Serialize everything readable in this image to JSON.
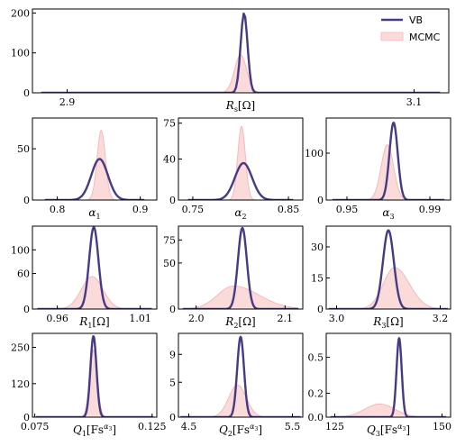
{
  "colors": {
    "vb": "#463a85",
    "mcmc_fill": "#fbdada",
    "mcmc_line": "#f6b9bb",
    "axis": "#000000"
  },
  "legend": {
    "placement": "top-right",
    "vb_label": "VB",
    "mcmc_label": "MCMC"
  },
  "chart_data": [
    {
      "id": "Rs",
      "type": "area",
      "xlabel": "R",
      "xlabel_sub": "s",
      "xlabel_unit": "[Ω]",
      "xlim": [
        2.88,
        3.12
      ],
      "ylim": [
        0,
        210
      ],
      "xticks": [
        2.9,
        3.1
      ],
      "xtick_labels": [
        "2.9",
        "3.1"
      ],
      "yticks": [
        0,
        100,
        200
      ],
      "ytick_labels": [
        "0",
        "100",
        "200"
      ],
      "line_range": [
        2.885,
        3.115
      ],
      "series": [
        {
          "name": "VB",
          "kind": "line",
          "center": 3.002,
          "sigma": 0.002,
          "peak": 200
        },
        {
          "name": "MCMC",
          "kind": "fill",
          "center": 3.0,
          "sigma": 0.0035,
          "peak": 95
        }
      ]
    },
    {
      "id": "alpha1",
      "type": "area",
      "xlabel": "α",
      "xlabel_sub": "1",
      "xlabel_unit": "",
      "xlim": [
        0.77,
        0.92
      ],
      "ylim": [
        0,
        80
      ],
      "xticks": [
        0.8,
        0.9
      ],
      "xtick_labels": [
        "0.8",
        "0.9"
      ],
      "yticks": [
        0,
        50
      ],
      "ytick_labels": [
        "0",
        "50"
      ],
      "line_range": [
        0.785,
        0.905
      ],
      "series": [
        {
          "name": "VB",
          "kind": "line",
          "center": 0.851,
          "sigma": 0.01,
          "peak": 40
        },
        {
          "name": "MCMC",
          "kind": "fill",
          "center": 0.853,
          "sigma": 0.005,
          "peak": 68
        }
      ]
    },
    {
      "id": "alpha2",
      "type": "area",
      "xlabel": "α",
      "xlabel_sub": "2",
      "xlabel_unit": "",
      "xlim": [
        0.735,
        0.865
      ],
      "ylim": [
        0,
        80
      ],
      "xticks": [
        0.75,
        0.85
      ],
      "xtick_labels": [
        "0.75",
        "0.85"
      ],
      "yticks": [
        0,
        40,
        75
      ],
      "ytick_labels": [
        "0",
        "40",
        "75"
      ],
      "line_range": [
        0.745,
        0.855
      ],
      "series": [
        {
          "name": "VB",
          "kind": "line",
          "center": 0.803,
          "sigma": 0.009,
          "peak": 36
        },
        {
          "name": "MCMC",
          "kind": "fill",
          "center": 0.801,
          "sigma": 0.004,
          "peak": 72
        }
      ]
    },
    {
      "id": "alpha3",
      "type": "area",
      "xlabel": "α",
      "xlabel_sub": "3",
      "xlabel_unit": "",
      "xlim": [
        0.94,
        1.0
      ],
      "ylim": [
        0,
        175
      ],
      "xticks": [
        0.95,
        0.99
      ],
      "xtick_labels": [
        "0.95",
        "0.99"
      ],
      "yticks": [
        0,
        100
      ],
      "ytick_labels": [
        "0",
        "100"
      ],
      "line_range": [
        0.943,
        0.997
      ],
      "series": [
        {
          "name": "VB",
          "kind": "line",
          "center": 0.9725,
          "sigma": 0.002,
          "peak": 165
        },
        {
          "name": "MCMC",
          "kind": "fill",
          "center": 0.9695,
          "sigma": 0.003,
          "peak": 118
        }
      ]
    },
    {
      "id": "R1",
      "type": "area",
      "xlabel": "R",
      "xlabel_sub": "1",
      "xlabel_unit": "[Ω]",
      "xlim": [
        0.945,
        1.02
      ],
      "ylim": [
        0,
        140
      ],
      "xticks": [
        0.96,
        1.01
      ],
      "xtick_labels": [
        "0.96",
        "1.01"
      ],
      "yticks": [
        0,
        60,
        100
      ],
      "ytick_labels": [
        "0",
        "60",
        "100"
      ],
      "line_range": [
        0.948,
        1.017
      ],
      "series": [
        {
          "name": "VB",
          "kind": "line",
          "center": 0.982,
          "sigma": 0.0028,
          "peak": 138
        },
        {
          "name": "MCMC",
          "kind": "fill",
          "center": 0.981,
          "sigma": 0.0065,
          "peak": 55
        }
      ]
    },
    {
      "id": "R2",
      "type": "area",
      "xlabel": "R",
      "xlabel_sub": "2",
      "xlabel_unit": "[Ω]",
      "xlim": [
        1.98,
        2.12
      ],
      "ylim": [
        0,
        90
      ],
      "xticks": [
        2.0,
        2.1
      ],
      "xtick_labels": [
        "2.0",
        "2.1"
      ],
      "yticks": [
        0,
        50,
        75
      ],
      "ytick_labels": [
        "0",
        "50",
        "75"
      ],
      "line_range": [
        1.985,
        2.115
      ],
      "series": [
        {
          "name": "VB",
          "kind": "line",
          "center": 2.052,
          "sigma": 0.005,
          "peak": 88
        },
        {
          "name": "MCMC",
          "kind": "fill",
          "center": 2.042,
          "sigma": 0.018,
          "peak": 25,
          "skew": 1.6
        }
      ]
    },
    {
      "id": "R3",
      "type": "area",
      "xlabel": "R",
      "xlabel_sub": "3",
      "xlabel_unit": "[Ω]",
      "xlim": [
        2.98,
        3.22
      ],
      "ylim": [
        0,
        40
      ],
      "xticks": [
        3.0,
        3.2
      ],
      "xtick_labels": [
        "3.0",
        "3.2"
      ],
      "yticks": [
        0,
        15,
        30
      ],
      "ytick_labels": [
        "0",
        "15",
        "30"
      ],
      "line_range": [
        2.985,
        3.215
      ],
      "series": [
        {
          "name": "VB",
          "kind": "line",
          "center": 3.1,
          "sigma": 0.0105,
          "peak": 38
        },
        {
          "name": "MCMC",
          "kind": "fill",
          "center": 3.112,
          "sigma": 0.022,
          "peak": 20,
          "skew": 1.3
        }
      ]
    },
    {
      "id": "Q1",
      "type": "area",
      "xlabel": "Q",
      "xlabel_sub": "1",
      "xlabel_unit": "[Fs",
      "xlabel_sup": "α",
      "xlabel_sup_sub": "3",
      "xlabel_close": "]",
      "xlim": [
        0.074,
        0.127
      ],
      "ylim": [
        0,
        300
      ],
      "xticks": [
        0.075,
        0.125
      ],
      "xtick_labels": [
        "0.075",
        "0.125"
      ],
      "yticks": [
        0,
        120,
        250
      ],
      "ytick_labels": [
        "0",
        "120",
        "250"
      ],
      "line_range": [
        0.0755,
        0.1255
      ],
      "series": [
        {
          "name": "VB",
          "kind": "line",
          "center": 0.1,
          "sigma": 0.0013,
          "peak": 290
        },
        {
          "name": "MCMC",
          "kind": "fill",
          "center": 0.1,
          "sigma": 0.0016,
          "peak": 240
        }
      ]
    },
    {
      "id": "Q2",
      "type": "area",
      "xlabel": "Q",
      "xlabel_sub": "2",
      "xlabel_unit": "[Fs",
      "xlabel_sup": "α",
      "xlabel_sup_sub": "3",
      "xlabel_close": "]",
      "xlim": [
        4.4,
        5.6
      ],
      "ylim": [
        0,
        12
      ],
      "xticks": [
        4.5,
        5.5
      ],
      "xtick_labels": [
        "4.5",
        "5.5"
      ],
      "yticks": [
        0,
        5,
        9
      ],
      "ytick_labels": [
        "0",
        "5",
        "9"
      ],
      "line_range": [
        4.42,
        5.58
      ],
      "series": [
        {
          "name": "VB",
          "kind": "line",
          "center": 5.0,
          "sigma": 0.033,
          "peak": 11.5
        },
        {
          "name": "MCMC",
          "kind": "fill",
          "center": 4.97,
          "sigma": 0.085,
          "peak": 4.6
        }
      ]
    },
    {
      "id": "Q3",
      "type": "area",
      "xlabel": "Q",
      "xlabel_sub": "3",
      "xlabel_unit": "[Fs",
      "xlabel_sup": "α",
      "xlabel_sup_sub": "3",
      "xlabel_close": "]",
      "xlim": [
        123,
        152
      ],
      "ylim": [
        0,
        0.7
      ],
      "xticks": [
        125,
        150
      ],
      "xtick_labels": [
        "125",
        "150"
      ],
      "yticks": [
        0.0,
        0.2,
        0.5
      ],
      "ytick_labels": [
        "0.0",
        "0.2",
        "0.5"
      ],
      "line_range": [
        124,
        151
      ],
      "series": [
        {
          "name": "VB",
          "kind": "line",
          "center": 140,
          "sigma": 0.6,
          "peak": 0.66
        },
        {
          "name": "MCMC",
          "kind": "fill",
          "center": 135.5,
          "sigma": 3.5,
          "peak": 0.11
        }
      ]
    }
  ]
}
